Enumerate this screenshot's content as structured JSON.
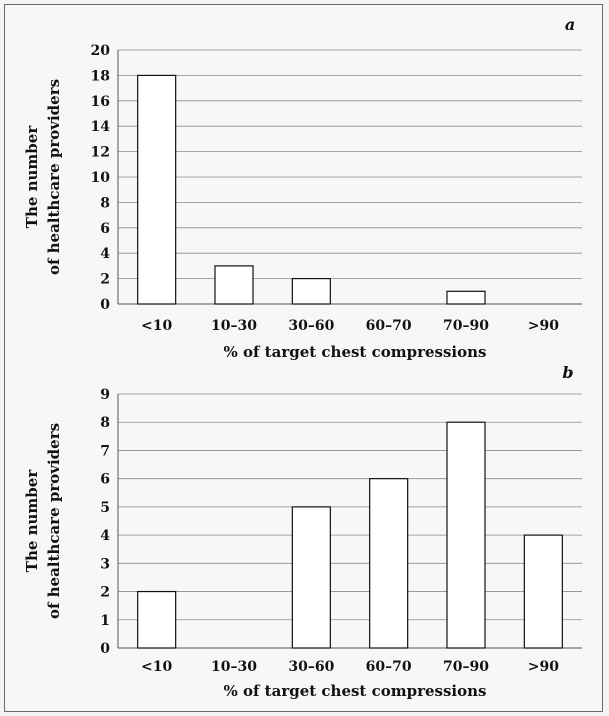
{
  "chart_data": [
    {
      "type": "bar",
      "panel": "a",
      "categories": [
        "<10",
        "10–30",
        "30–60",
        "60–70",
        "70–90",
        ">90"
      ],
      "values": [
        18,
        3,
        2,
        0,
        1,
        0
      ],
      "xlabel": "% of target chest compressions",
      "ylabel_line1": "The number",
      "ylabel_line2": "of healthcare providers",
      "ylim": [
        0,
        20
      ],
      "yticks": [
        "0",
        "2",
        "4",
        "6",
        "8",
        "10",
        "12",
        "14",
        "16",
        "18",
        "20"
      ],
      "grid": true
    },
    {
      "type": "bar",
      "panel": "b",
      "categories": [
        "<10",
        "10–30",
        "30–60",
        "60–70",
        "70–90",
        ">90"
      ],
      "values": [
        2,
        0,
        5,
        6,
        8,
        4
      ],
      "xlabel": "% of target chest compressions",
      "ylabel_line1": "The number",
      "ylabel_line2": "of healthcare providers",
      "ylim": [
        0,
        9
      ],
      "yticks": [
        "0",
        "1",
        "2",
        "3",
        "4",
        "5",
        "6",
        "7",
        "8",
        "9"
      ],
      "grid": true
    }
  ]
}
